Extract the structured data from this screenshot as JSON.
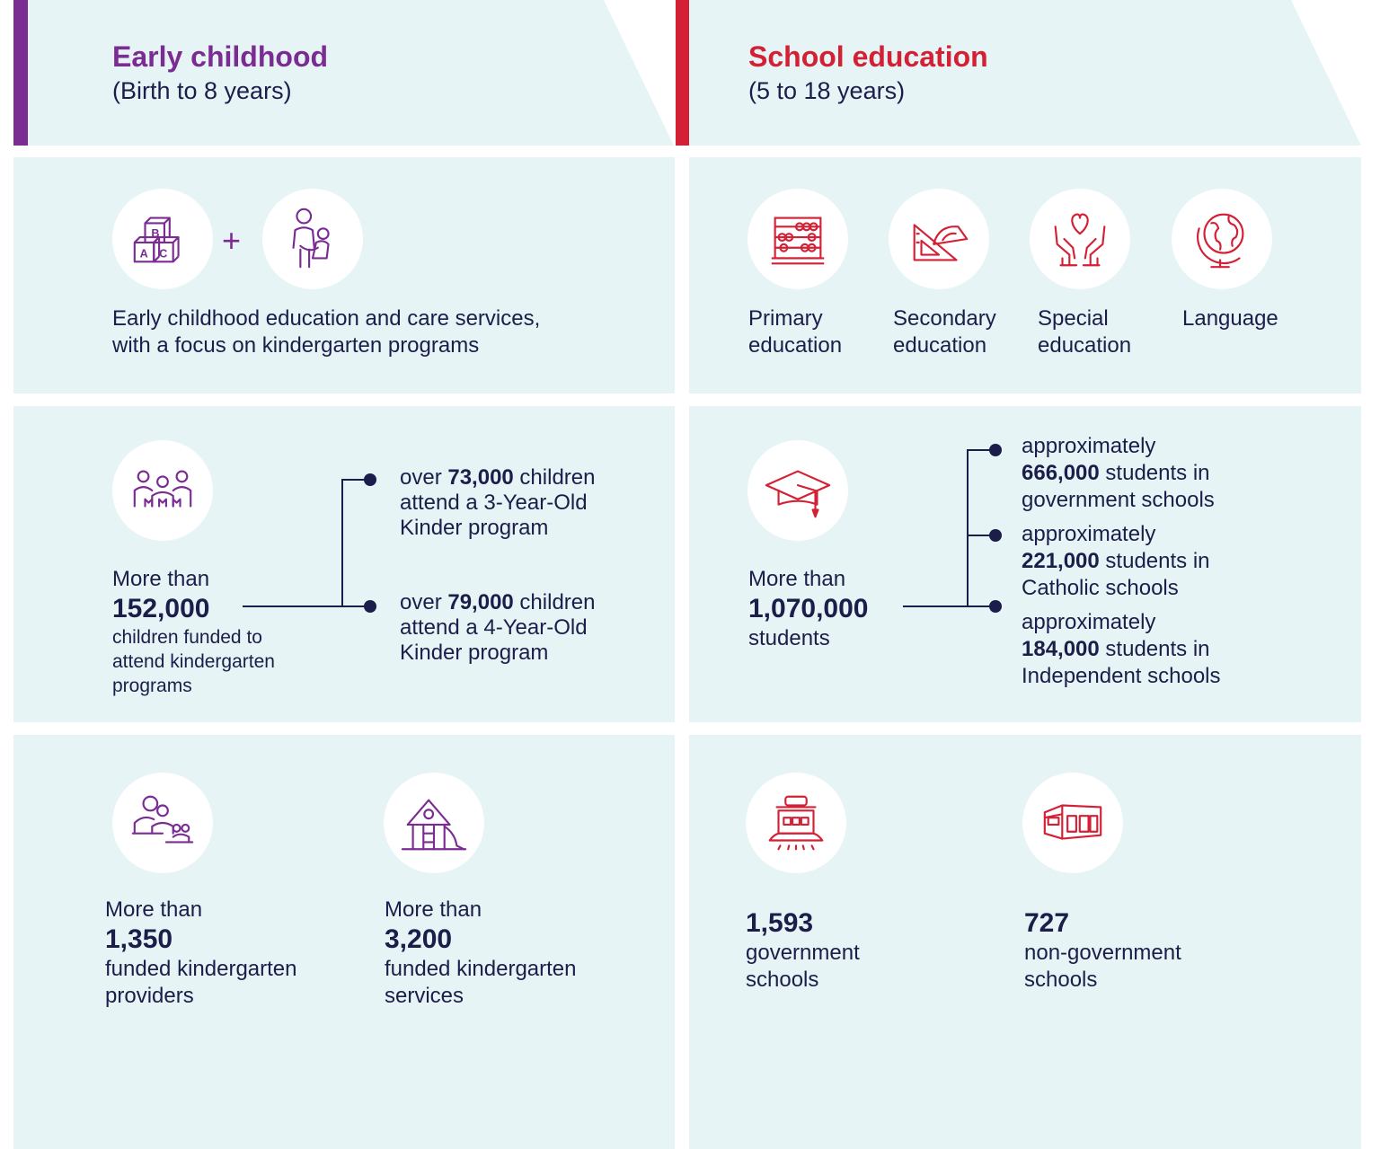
{
  "colors": {
    "early": "#7b2c93",
    "school": "#d42035",
    "panel": "#e6f4f5",
    "navy": "#1b1d4a"
  },
  "early": {
    "title": "Early childhood",
    "subtitle": "(Birth to 8 years)",
    "plus": "+",
    "services_line1": "Early childhood education and care services,",
    "services_line2": "with a focus on kindergarten programs",
    "funded": {
      "prefix": "More than",
      "number": "152,000",
      "line1": "children funded to",
      "line2": "attend kindergarten",
      "line3": "programs"
    },
    "branch1": {
      "pre": "over ",
      "num": "73,000",
      "post": " children",
      "line2": "attend a 3-Year-Old",
      "line3": "Kinder program"
    },
    "branch2": {
      "pre": "over ",
      "num": "79,000",
      "post": " children",
      "line2": "attend a 4-Year-Old",
      "line3": "Kinder program"
    },
    "providers": {
      "prefix": "More than",
      "number": "1,350",
      "line1": "funded kindergarten",
      "line2": "providers"
    },
    "services": {
      "prefix": "More than",
      "number": "3,200",
      "line1": "funded kindergarten",
      "line2": "services"
    }
  },
  "school": {
    "title": "School education",
    "subtitle": "(5 to 18 years)",
    "categories": [
      {
        "line1": "Primary",
        "line2": "education",
        "icon": "abacus-icon"
      },
      {
        "line1": "Secondary",
        "line2": "education",
        "icon": "set-square-protractor-icon"
      },
      {
        "line1": "Special",
        "line2": "education",
        "icon": "hands-heart-icon"
      },
      {
        "line1": "Language",
        "line2": "",
        "icon": "globe-icon"
      }
    ],
    "students": {
      "prefix": "More than",
      "number": "1,070,000",
      "suffix": "students"
    },
    "branch1": {
      "line1": "approximately",
      "num": "666,000",
      "post": " students in",
      "line3": "government schools"
    },
    "branch2": {
      "line1": "approximately",
      "num": "221,000",
      "post": " students in",
      "line3": "Catholic schools"
    },
    "branch3": {
      "line1": "approximately",
      "num": "184,000",
      "post": " students in",
      "line3": "Independent schools"
    },
    "gov": {
      "number": "1,593",
      "line1": "government",
      "line2": "schools"
    },
    "nongov": {
      "number": "727",
      "line1": "non-government",
      "line2": "schools"
    }
  }
}
